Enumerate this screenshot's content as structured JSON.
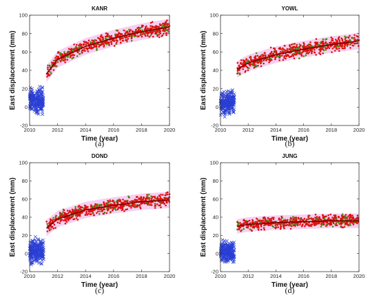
{
  "chart_data": [
    {
      "type": "scatter",
      "panel": "(a)",
      "title": "KANR",
      "xlabel": "Time (year)",
      "ylabel": "East displacement (mm)",
      "xlim": [
        2010,
        2020
      ],
      "ylim": [
        -20,
        100
      ],
      "xticks": [
        2010,
        2012,
        2014,
        2016,
        2018,
        2020
      ],
      "yticks": [
        -20,
        0,
        20,
        40,
        60,
        80,
        100
      ],
      "grid": false,
      "colors": {
        "pre": "#2a3fd4",
        "post": "#e01010",
        "post_alt": "#4a8a1a",
        "fit": "#7a0000",
        "band": "#f3c8f0"
      },
      "series": [
        {
          "x": [
            2010.0,
            2011.0
          ],
          "mean": 7,
          "spread": 14
        },
        {
          "x": [
            2011.2,
            2020.0
          ],
          "fit": [
            [
              2011.2,
              36
            ],
            [
              2012,
              52
            ],
            [
              2014,
              66
            ],
            [
              2016,
              75
            ],
            [
              2018,
              82
            ],
            [
              2020,
              87
            ]
          ],
          "spread": 9
        }
      ]
    },
    {
      "type": "scatter",
      "panel": "(b)",
      "title": "YOWL",
      "xlabel": "Time (year)",
      "ylabel": "East displacement (mm)",
      "xlim": [
        2010,
        2020
      ],
      "ylim": [
        -20,
        100
      ],
      "xticks": [
        2010,
        2012,
        2014,
        2016,
        2018,
        2020
      ],
      "yticks": [
        -20,
        0,
        20,
        40,
        60,
        80,
        100
      ],
      "grid": false,
      "colors": {
        "pre": "#2a3fd4",
        "post": "#e01010",
        "post_alt": "#4a8a1a",
        "fit": "#7a0000",
        "band": "#f3c8f0"
      },
      "series": [
        {
          "x": [
            2010.0,
            2011.0
          ],
          "mean": 5,
          "spread": 15
        },
        {
          "x": [
            2011.2,
            2020.0
          ],
          "fit": [
            [
              2011.2,
              41
            ],
            [
              2012,
              48
            ],
            [
              2014,
              57
            ],
            [
              2016,
              63
            ],
            [
              2018,
              68
            ],
            [
              2020,
              72
            ]
          ],
          "spread": 9
        }
      ]
    },
    {
      "type": "scatter",
      "panel": "(c)",
      "title": "DOND",
      "xlabel": "Time (year)",
      "ylabel": "East displacement (mm)",
      "xlim": [
        2010,
        2020
      ],
      "ylim": [
        -20,
        100
      ],
      "xticks": [
        2010,
        2012,
        2014,
        2016,
        2018,
        2020
      ],
      "yticks": [
        -20,
        0,
        20,
        40,
        60,
        80,
        100
      ],
      "grid": false,
      "colors": {
        "pre": "#2a3fd4",
        "post": "#e01010",
        "post_alt": "#4a8a1a",
        "fit": "#7a0000",
        "band": "#f3c8f0"
      },
      "series": [
        {
          "x": [
            2010.0,
            2011.0
          ],
          "mean": 2,
          "spread": 15
        },
        {
          "x": [
            2011.2,
            2020.0
          ],
          "fit": [
            [
              2011.2,
              28
            ],
            [
              2012,
              38
            ],
            [
              2014,
              48
            ],
            [
              2016,
              53
            ],
            [
              2018,
              57
            ],
            [
              2020,
              59
            ]
          ],
          "spread": 9
        }
      ]
    },
    {
      "type": "scatter",
      "panel": "(d)",
      "title": "JUNG",
      "xlabel": "Time (year)",
      "ylabel": "East displacement (mm)",
      "xlim": [
        2010,
        2020
      ],
      "ylim": [
        -20,
        100
      ],
      "xticks": [
        2010,
        2012,
        2014,
        2016,
        2018,
        2020
      ],
      "yticks": [
        -20,
        0,
        20,
        40,
        60,
        80,
        100
      ],
      "grid": false,
      "colors": {
        "pre": "#2a3fd4",
        "post": "#e01010",
        "post_alt": "#4a8a1a",
        "fit": "#7a0000",
        "band": "#f3c8f0"
      },
      "series": [
        {
          "x": [
            2010.0,
            2011.0
          ],
          "mean": 2,
          "spread": 14
        },
        {
          "x": [
            2011.2,
            2020.0
          ],
          "fit": [
            [
              2011.2,
              30
            ],
            [
              2012,
              32
            ],
            [
              2014,
              34
            ],
            [
              2016,
              35
            ],
            [
              2018,
              36
            ],
            [
              2020,
              36
            ]
          ],
          "spread": 8
        }
      ]
    }
  ]
}
